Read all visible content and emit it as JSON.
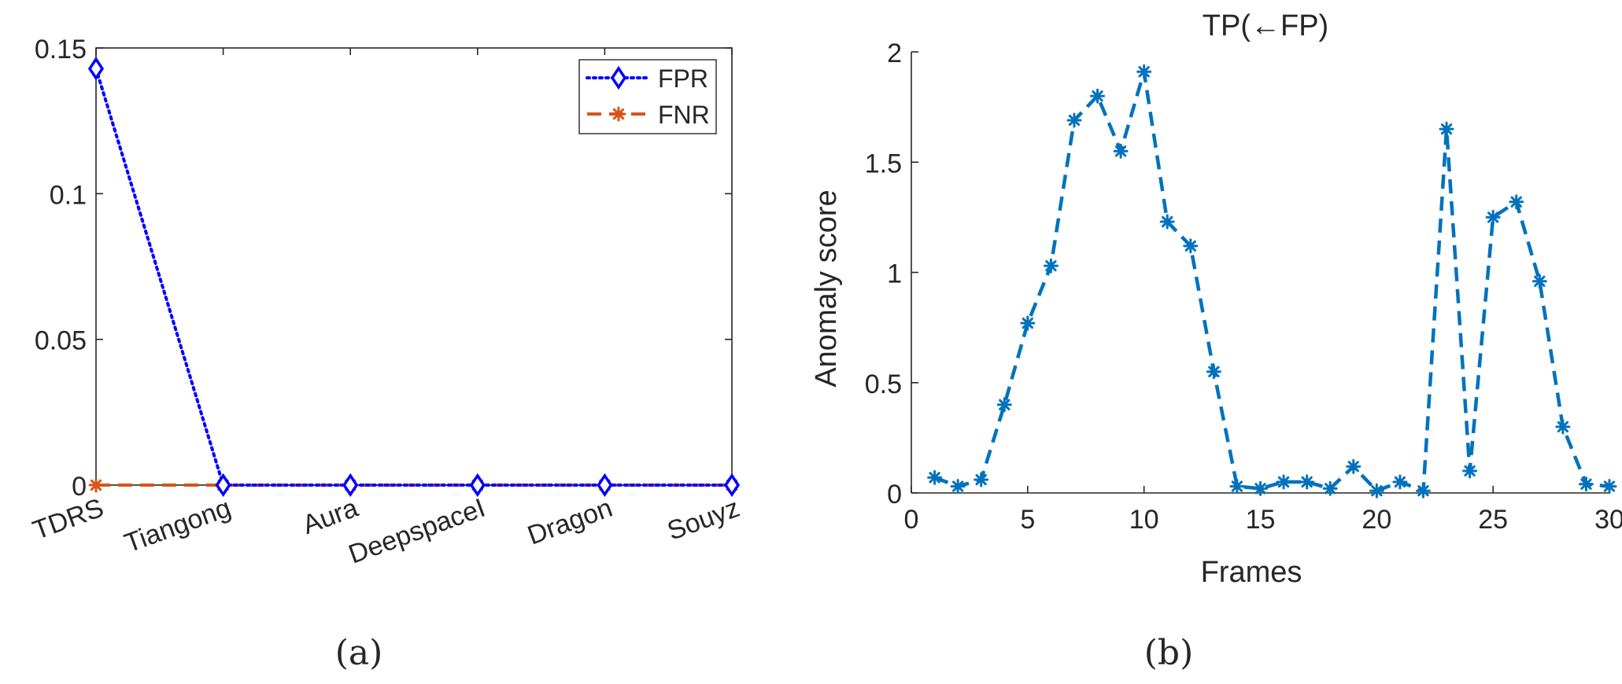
{
  "chart_data": [
    {
      "type": "line",
      "caption": "(a)",
      "title": "",
      "xlabel": "",
      "ylabel": "",
      "categories": [
        "TDRS",
        "Tiangong",
        "Aura",
        "DeepspaceI",
        "Dragon",
        "Souyz"
      ],
      "ylim": [
        0,
        0.15
      ],
      "yticks": [
        "0",
        "0.05",
        "0.1",
        "0.15"
      ],
      "legend_position": "top-right",
      "series": [
        {
          "name": "FPR",
          "values": [
            0.1429,
            0,
            0,
            0,
            0,
            0
          ],
          "color": "#0000ff",
          "line_style": "dotted",
          "marker": "diamond"
        },
        {
          "name": "FNR",
          "values": [
            0,
            0,
            0,
            0,
            0,
            0
          ],
          "color": "#d95319",
          "line_style": "dashed",
          "marker": "asterisk"
        }
      ]
    },
    {
      "type": "line",
      "caption": "(b)",
      "title": "TP(←FP)",
      "xlabel": "Frames",
      "ylabel": "Anomaly score",
      "xlim": [
        0,
        30
      ],
      "ylim": [
        0,
        2
      ],
      "xticks": [
        "0",
        "5",
        "10",
        "15",
        "20",
        "25",
        "30"
      ],
      "yticks": [
        "0",
        "0.5",
        "1",
        "1.5",
        "2"
      ],
      "series": [
        {
          "name": "Anomaly score",
          "color": "#0072bd",
          "line_style": "dashed",
          "marker": "asterisk",
          "x": [
            1,
            2,
            3,
            4,
            5,
            6,
            7,
            8,
            9,
            10,
            11,
            12,
            13,
            14,
            15,
            16,
            17,
            18,
            19,
            20,
            21,
            22,
            23,
            24,
            25,
            26,
            27,
            28,
            29,
            30
          ],
          "values": [
            0.07,
            0.03,
            0.06,
            0.4,
            0.77,
            1.03,
            1.69,
            1.8,
            1.55,
            1.91,
            1.23,
            1.12,
            0.55,
            0.03,
            0.02,
            0.05,
            0.05,
            0.02,
            0.12,
            0.01,
            0.05,
            0.01,
            1.65,
            0.1,
            1.25,
            1.32,
            0.96,
            0.3,
            0.04,
            0.03
          ]
        }
      ]
    }
  ]
}
